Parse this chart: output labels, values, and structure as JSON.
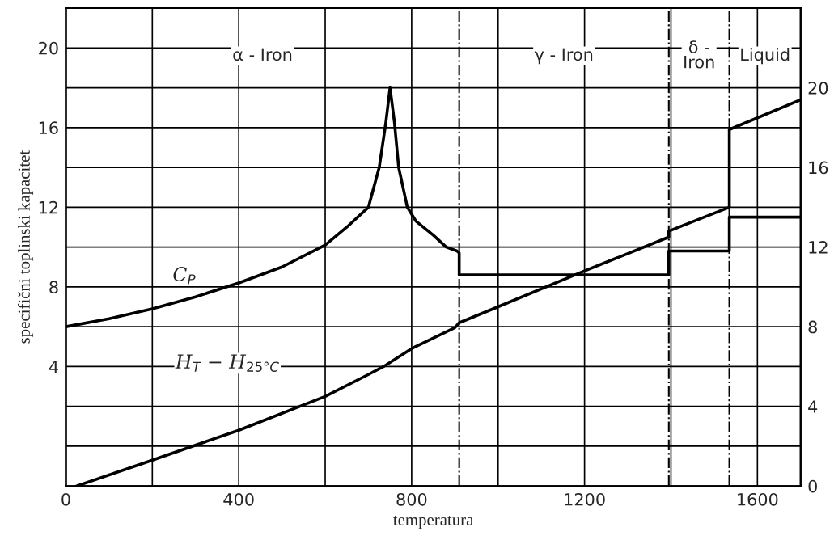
{
  "chart_data": {
    "type": "line",
    "xlabel": "temperatura",
    "ylabel": "specifični toplinski kapacitet",
    "xlim": [
      0,
      1700
    ],
    "xticks": [
      0,
      {
        "value": 200,
        "label": null
      },
      400,
      {
        "value": 600,
        "label": null
      },
      800,
      {
        "value": 1000,
        "label": null
      },
      1200,
      {
        "value": 1400,
        "label": null
      },
      1600
    ],
    "ylim": [
      -2,
      22
    ],
    "yticks": [
      {
        "value": 0,
        "label": null
      },
      {
        "value": 2,
        "label": null
      },
      4,
      {
        "value": 6,
        "label": null
      },
      8,
      {
        "value": 10,
        "label": null
      },
      12,
      {
        "value": 14,
        "label": null
      },
      16,
      {
        "value": 18,
        "label": null
      },
      20
    ],
    "y2lim": [
      0,
      24
    ],
    "y2ticks": [
      0,
      4,
      8,
      12,
      16,
      20
    ],
    "grid": true,
    "series": [
      {
        "name": "C$_{P}$",
        "color": "#000000",
        "x": [
          0,
          100,
          200,
          300,
          400,
          500,
          600,
          650,
          700,
          725,
          740,
          750,
          760,
          770,
          790,
          810,
          850,
          880,
          905,
          910,
          910,
          1395,
          1395,
          1535,
          1535,
          1700
        ],
        "values": [
          6.0,
          6.4,
          6.9,
          7.5,
          8.2,
          9.0,
          10.1,
          11.0,
          12.0,
          14.0,
          16.2,
          18.0,
          16.3,
          14.0,
          12.0,
          11.3,
          10.6,
          10.0,
          9.8,
          9.7,
          8.6,
          8.6,
          9.8,
          9.8,
          11.5,
          11.5
        ]
      },
      {
        "name": "H$_{T}$ − H$_{25°C}$",
        "color": "#000000",
        "axis": "y2",
        "x": [
          25,
          200,
          400,
          600,
          700,
          735,
          800,
          900,
          910,
          1000,
          1200,
          1395,
          1395,
          1535,
          1535,
          1700
        ],
        "values": [
          0,
          1.3,
          2.8,
          4.5,
          5.6,
          6.0,
          6.9,
          7.95,
          8.2,
          9.0,
          10.8,
          12.5,
          12.8,
          14.0,
          17.9,
          19.4
        ]
      }
    ],
    "ref_lines": [
      {
        "axis": "x",
        "value": 910,
        "line_style": "dashed"
      },
      {
        "axis": "x",
        "value": 1395,
        "line_style": "dashed"
      },
      {
        "axis": "x",
        "value": 1535,
        "line_style": "dashed"
      }
    ],
    "annotations": [
      "α - Iron",
      "γ - Iron",
      "δ -\nIron",
      "Liquid"
    ]
  }
}
